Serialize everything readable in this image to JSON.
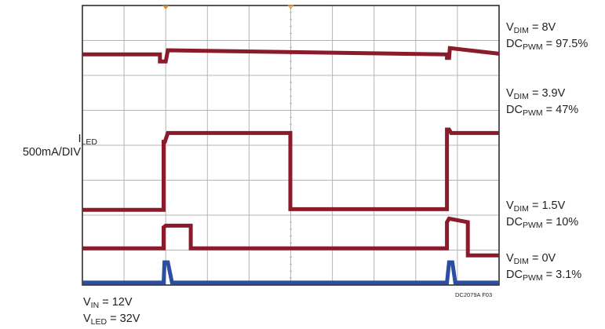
{
  "chart_data": {
    "type": "line",
    "title": "",
    "xlabel": "",
    "ylabel": {
      "base": "I",
      "sub": "LED",
      "scale": "500mA/DIV"
    },
    "grid": true,
    "divisions": {
      "x": 10,
      "y": 8
    },
    "series": [
      {
        "trace": "DC 97.5%",
        "color": "#8b1a2a",
        "points": [
          [
            0,
            6.6
          ],
          [
            1.86,
            6.6
          ],
          [
            1.86,
            6.4
          ],
          [
            2.0,
            6.4
          ],
          [
            2.05,
            6.72
          ],
          [
            8.75,
            6.6
          ],
          [
            8.75,
            6.5
          ],
          [
            8.8,
            6.5
          ],
          [
            8.82,
            6.78
          ],
          [
            10,
            6.62
          ]
        ]
      },
      {
        "trace": "DC 47%",
        "color": "#8b1a2a",
        "points": [
          [
            0,
            2.15
          ],
          [
            1.95,
            2.15
          ],
          [
            1.95,
            4.1
          ],
          [
            1.98,
            4.1
          ],
          [
            2.05,
            4.35
          ],
          [
            4.99,
            4.35
          ],
          [
            4.99,
            2.17
          ],
          [
            8.75,
            2.17
          ],
          [
            8.75,
            4.45
          ],
          [
            8.8,
            4.45
          ],
          [
            8.85,
            4.35
          ],
          [
            10,
            4.35
          ]
        ]
      },
      {
        "trace": "DC 10%",
        "color": "#8b1a2a",
        "points": [
          [
            0,
            1.05
          ],
          [
            1.95,
            1.05
          ],
          [
            1.95,
            1.65
          ],
          [
            2.0,
            1.7
          ],
          [
            2.6,
            1.7
          ],
          [
            2.6,
            1.05
          ],
          [
            8.75,
            1.05
          ],
          [
            8.75,
            1.8
          ],
          [
            8.8,
            1.9
          ],
          [
            9.25,
            1.8
          ],
          [
            9.25,
            0.85
          ],
          [
            10,
            0.85
          ]
        ]
      },
      {
        "trace": "DC 3.1%",
        "color": "#2b4da3",
        "points": [
          [
            0,
            0.07
          ],
          [
            1.95,
            0.07
          ],
          [
            1.97,
            0.65
          ],
          [
            2.05,
            0.65
          ],
          [
            2.15,
            0.07
          ],
          [
            8.75,
            0.07
          ],
          [
            8.8,
            0.65
          ],
          [
            8.88,
            0.65
          ],
          [
            8.95,
            0.07
          ],
          [
            10,
            0.07
          ]
        ]
      }
    ],
    "trace_labels": [
      {
        "v": {
          "base": "V",
          "sub": "DIM",
          "value": " = 8V"
        },
        "dc": {
          "base": "DC",
          "sub": "PWM",
          "value": " = 97.5%"
        }
      },
      {
        "v": {
          "base": "V",
          "sub": "DIM",
          "value": " = 3.9V"
        },
        "dc": {
          "base": "DC",
          "sub": "PWM",
          "value": " = 47%"
        }
      },
      {
        "v": {
          "base": "V",
          "sub": "DIM",
          "value": " = 1.5V"
        },
        "dc": {
          "base": "DC",
          "sub": "PWM",
          "value": " = 10%"
        }
      },
      {
        "v": {
          "base": "V",
          "sub": "DIM",
          "value": " = 0V"
        },
        "dc": {
          "base": "DC",
          "sub": "PWM",
          "value": " = 3.1%"
        }
      }
    ],
    "conditions": [
      {
        "base": "V",
        "sub": "IN",
        "value": " = 12V"
      },
      {
        "base": "V",
        "sub": "LED",
        "value": " = 32V"
      }
    ],
    "reference": "DC2079A F03"
  }
}
